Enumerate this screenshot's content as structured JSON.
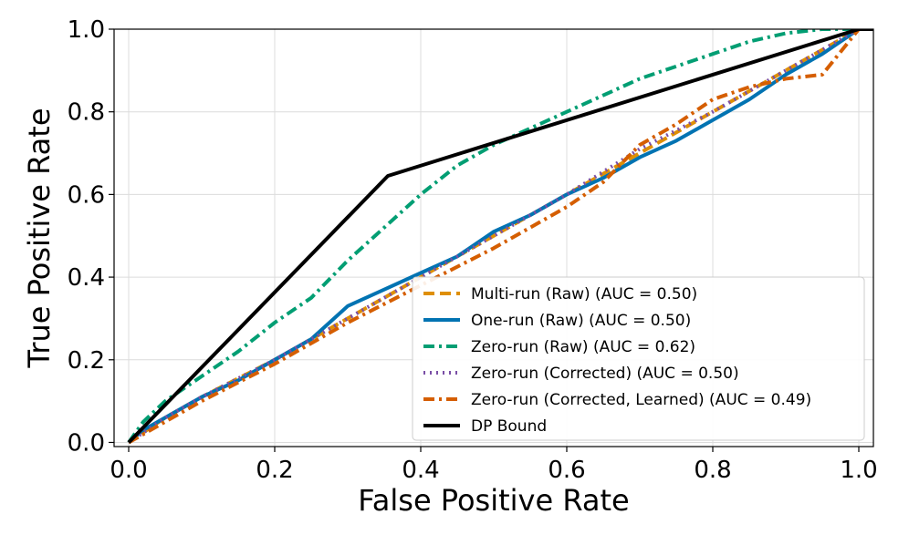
{
  "chart_data": {
    "type": "line",
    "title": "",
    "xlabel": "False Positive Rate",
    "ylabel": "True Positive Rate",
    "xlim": [
      -0.02,
      1.02
    ],
    "ylim": [
      -0.01,
      1.0
    ],
    "xticks": [
      "0.0",
      "0.2",
      "0.4",
      "0.6",
      "0.8",
      "1.0"
    ],
    "yticks": [
      "0.0",
      "0.2",
      "0.4",
      "0.6",
      "0.8",
      "1.0"
    ],
    "grid": true,
    "legend_position": "bottom-right",
    "series": [
      {
        "name": "Multi-run (Raw) (AUC = 0.50)",
        "color": "#de8f05",
        "dash": "dashed",
        "x": [
          0,
          0.05,
          0.1,
          0.2,
          0.3,
          0.4,
          0.5,
          0.6,
          0.7,
          0.8,
          0.9,
          1.0
        ],
        "y": [
          0,
          0.06,
          0.11,
          0.2,
          0.3,
          0.4,
          0.5,
          0.6,
          0.7,
          0.8,
          0.9,
          1.0
        ]
      },
      {
        "name": "One-run (Raw) (AUC = 0.50)",
        "color": "#0173b2",
        "dash": "solid",
        "x": [
          0,
          0.02,
          0.05,
          0.1,
          0.15,
          0.2,
          0.25,
          0.3,
          0.35,
          0.4,
          0.45,
          0.5,
          0.55,
          0.6,
          0.65,
          0.7,
          0.75,
          0.8,
          0.85,
          0.9,
          0.95,
          1.0
        ],
        "y": [
          0,
          0.03,
          0.06,
          0.11,
          0.15,
          0.2,
          0.25,
          0.33,
          0.37,
          0.41,
          0.45,
          0.51,
          0.55,
          0.6,
          0.64,
          0.69,
          0.73,
          0.78,
          0.83,
          0.89,
          0.94,
          1.0
        ]
      },
      {
        "name": "Zero-run (Raw) (AUC = 0.62)",
        "color": "#029e73",
        "dash": "dashdot",
        "x": [
          0,
          0.02,
          0.05,
          0.1,
          0.15,
          0.2,
          0.25,
          0.3,
          0.35,
          0.4,
          0.45,
          0.5,
          0.55,
          0.6,
          0.65,
          0.7,
          0.75,
          0.8,
          0.85,
          0.9,
          0.95,
          1.0
        ],
        "y": [
          0,
          0.05,
          0.1,
          0.16,
          0.22,
          0.29,
          0.35,
          0.44,
          0.52,
          0.6,
          0.67,
          0.72,
          0.76,
          0.8,
          0.84,
          0.88,
          0.91,
          0.94,
          0.97,
          0.99,
          1.0,
          1.0
        ]
      },
      {
        "name": "Zero-run (Corrected) (AUC = 0.50)",
        "color": "#7a4fa6",
        "dash": "dotted",
        "x": [
          0,
          0.05,
          0.1,
          0.2,
          0.3,
          0.35,
          0.4,
          0.5,
          0.6,
          0.7,
          0.8,
          0.9,
          1.0
        ],
        "y": [
          0,
          0.06,
          0.11,
          0.2,
          0.3,
          0.35,
          0.4,
          0.5,
          0.6,
          0.71,
          0.8,
          0.9,
          1.0
        ]
      },
      {
        "name": "Zero-run (Corrected, Learned) (AUC = 0.49)",
        "color": "#d55e00",
        "dash": "dashdot",
        "x": [
          0,
          0.05,
          0.1,
          0.2,
          0.3,
          0.4,
          0.5,
          0.6,
          0.65,
          0.7,
          0.75,
          0.8,
          0.85,
          0.9,
          0.95,
          1.0
        ],
        "y": [
          0,
          0.05,
          0.1,
          0.19,
          0.29,
          0.38,
          0.47,
          0.57,
          0.63,
          0.72,
          0.77,
          0.83,
          0.86,
          0.88,
          0.89,
          1.0
        ]
      },
      {
        "name": "DP Bound",
        "color": "#000000",
        "dash": "solid",
        "x": [
          0,
          0.355,
          1.0,
          1.02
        ],
        "y": [
          0,
          0.645,
          1.0,
          1.0
        ]
      }
    ]
  }
}
